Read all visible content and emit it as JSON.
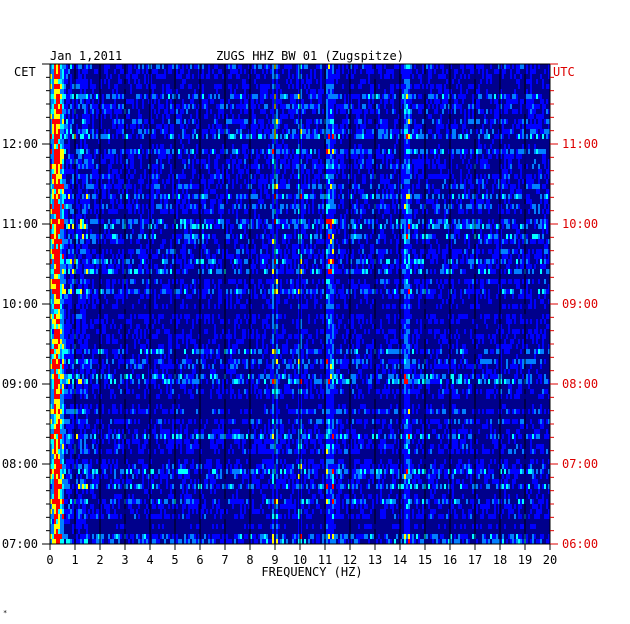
{
  "chart_data": {
    "type": "heatmap",
    "title": "ZUGS HHZ BW 01 (Zugspitze)",
    "date": "Jan 1,2011",
    "xlabel": "FREQUENCY (HZ)",
    "left_axis_label": "CET",
    "right_axis_label": "UTC",
    "xlim": [
      0,
      20
    ],
    "x_ticks": [
      "0",
      "1",
      "2",
      "3",
      "4",
      "5",
      "6",
      "7",
      "8",
      "9",
      "10",
      "11",
      "12",
      "13",
      "14",
      "15",
      "16",
      "17",
      "18",
      "19",
      "20"
    ],
    "cet_ticks": [
      "12:00",
      "11:00",
      "10:00",
      "09:00",
      "08:00",
      "07:00"
    ],
    "utc_ticks": [
      "11:00",
      "10:00",
      "09:00",
      "08:00",
      "07:00",
      "06:00"
    ],
    "time_range_cet": [
      "07:00",
      "13:00"
    ],
    "time_range_utc": [
      "06:00",
      "12:00"
    ],
    "colorscale": [
      "#00008c",
      "#0000ff",
      "#0080ff",
      "#00ffff",
      "#ffff00",
      "#ff0000"
    ],
    "prominent_frequency_lines_hz": [
      0.3,
      9.0,
      10.0,
      11.2,
      14.3
    ],
    "footer_mark": "*"
  }
}
